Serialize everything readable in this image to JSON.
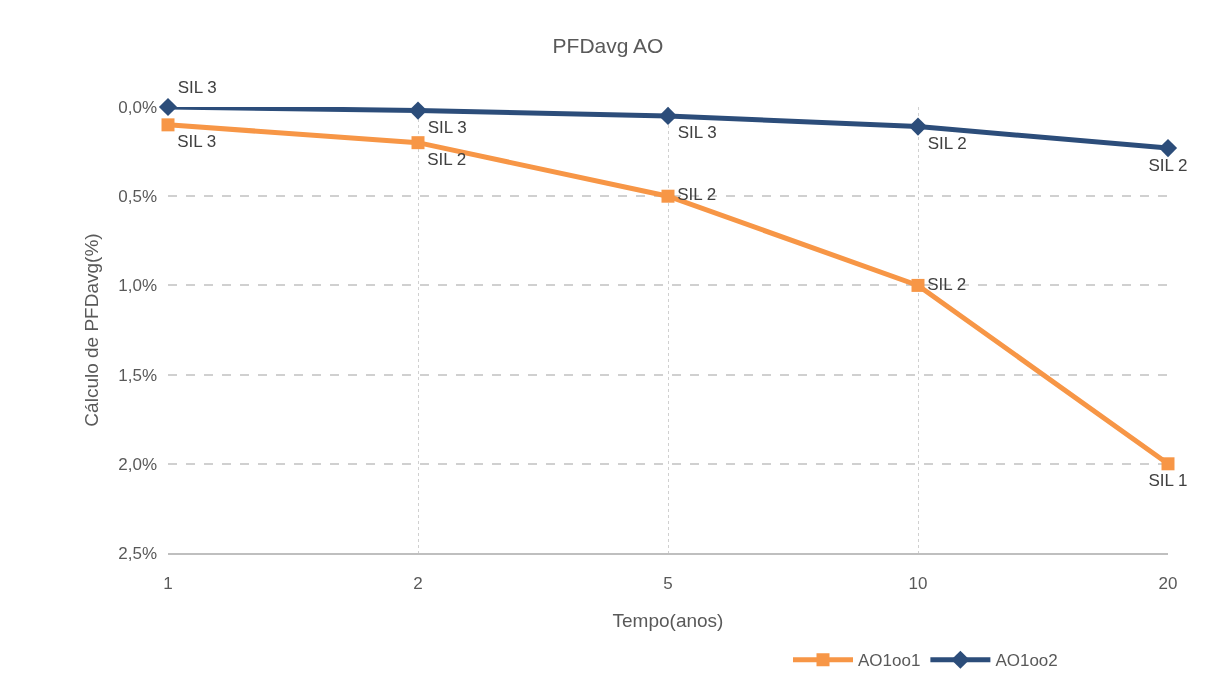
{
  "chart_data": {
    "type": "line",
    "title": "PFDavg AO",
    "xlabel": "Tempo(anos)",
    "ylabel": "Cálculo de PFDavg(%)",
    "categories": [
      "1",
      "2",
      "5",
      "10",
      "20"
    ],
    "series": [
      {
        "name": "AO1oo1",
        "color": "#f79646",
        "marker": "square",
        "values": [
          0.1,
          0.2,
          0.5,
          1.0,
          2.0
        ],
        "value_labels": [
          "SIL 3",
          "SIL 2",
          "SIL 2",
          "SIL 2",
          "SIL 1"
        ]
      },
      {
        "name": "AO1oo2",
        "color": "#2c4d7a",
        "marker": "diamond",
        "values": [
          0.0,
          0.02,
          0.05,
          0.11,
          0.23
        ],
        "value_labels": [
          "SIL 3",
          "SIL 3",
          "SIL 3",
          "SIL 2",
          "SIL 2"
        ]
      }
    ],
    "ylim": [
      2.5,
      0
    ],
    "yticks": [
      {
        "value": 0,
        "label": "0,0%"
      },
      {
        "value": 0.5,
        "label": "0,5%"
      },
      {
        "value": 1.0,
        "label": "1,0%"
      },
      {
        "value": 1.5,
        "label": "1,5%"
      },
      {
        "value": 2.0,
        "label": "2,0%"
      },
      {
        "value": 2.5,
        "label": "2,5%"
      }
    ],
    "grid": true,
    "legend": "bottom",
    "line_style": "solid"
  }
}
